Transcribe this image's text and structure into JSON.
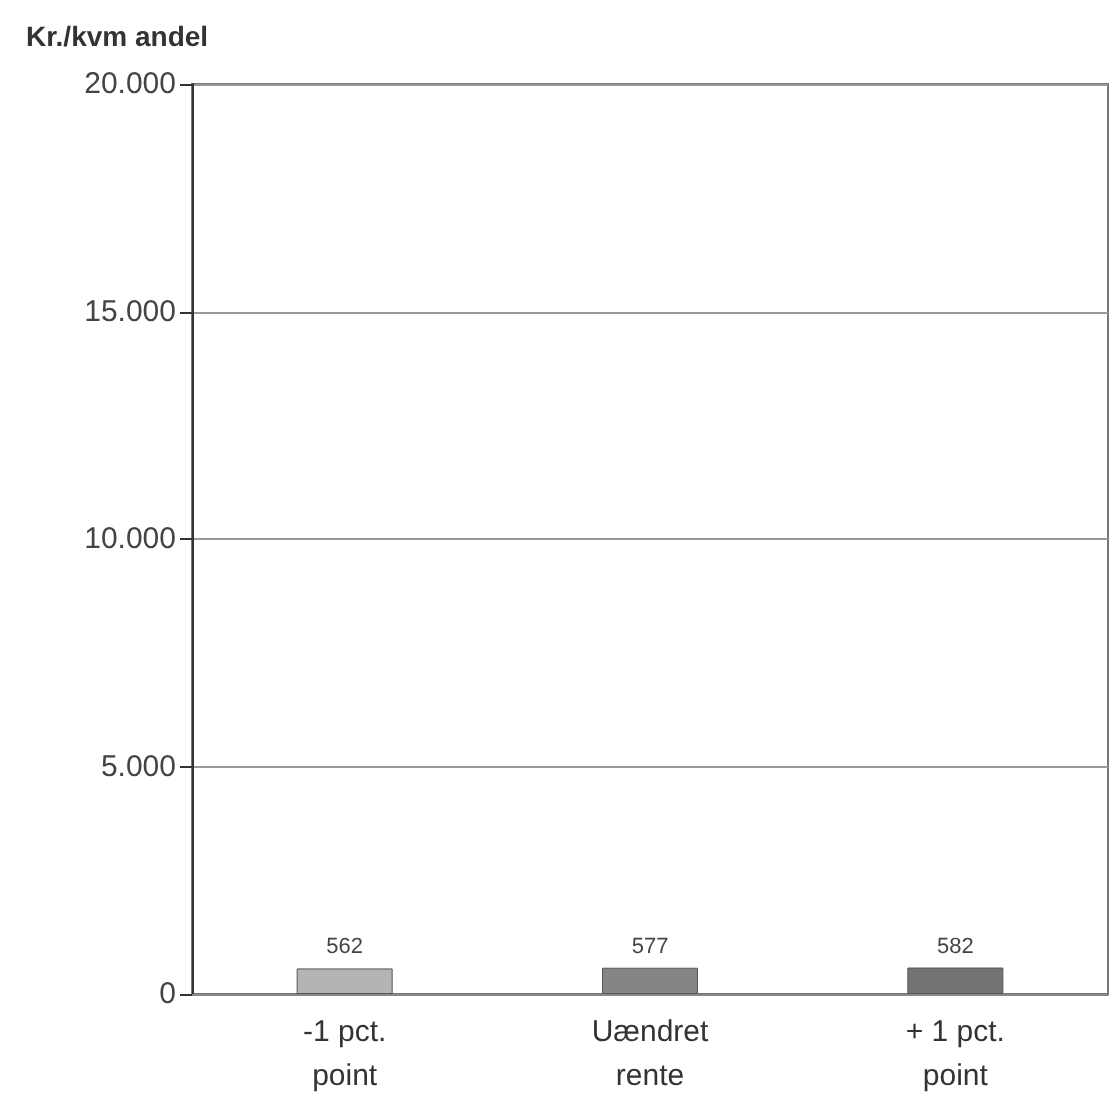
{
  "chart_data": {
    "type": "bar",
    "ylabel": "Kr./kvm andel",
    "categories": [
      "-1 pct.\npoint",
      "Uændret\nrente",
      "+ 1 pct.\npoint"
    ],
    "values": [
      562,
      577,
      582
    ],
    "colors": [
      "#b4b4b4",
      "#858585",
      "#737373"
    ],
    "ylim": [
      0,
      20000
    ],
    "yticks": [
      {
        "value": 0,
        "label": "0"
      },
      {
        "value": 5000,
        "label": "5.000"
      },
      {
        "value": 10000,
        "label": "10.000"
      },
      {
        "value": 15000,
        "label": "15.000"
      },
      {
        "value": 20000,
        "label": "20.000"
      }
    ],
    "grid": "y",
    "data_labels": true
  }
}
